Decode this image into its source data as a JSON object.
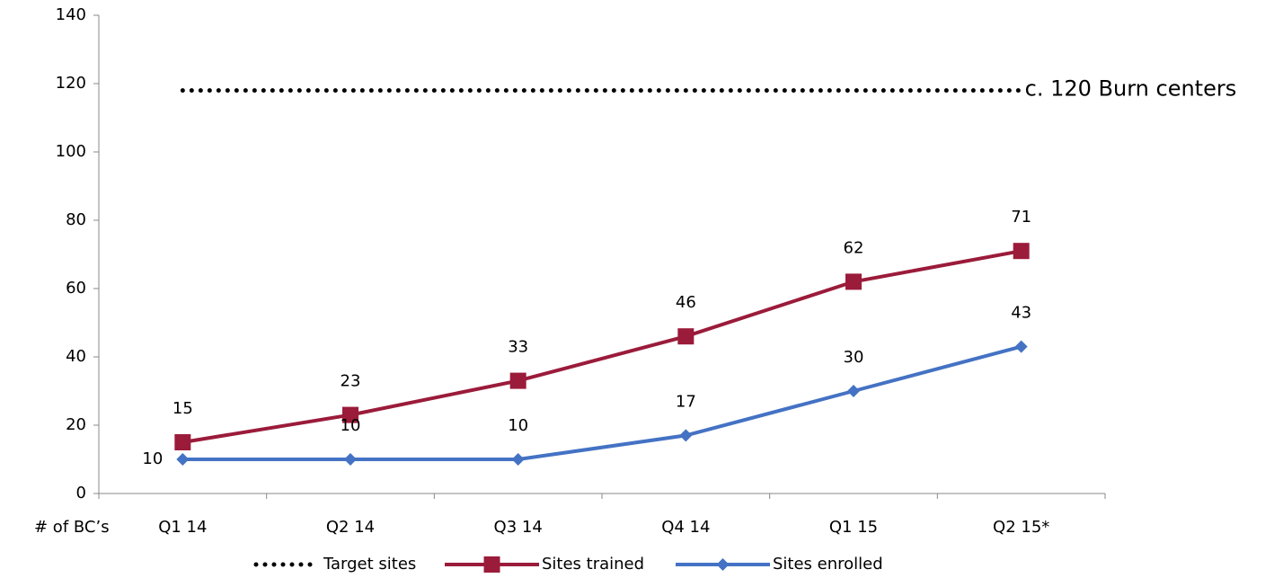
{
  "chart_data": {
    "type": "line",
    "categories": [
      "Q1 14",
      "Q2 14",
      "Q3 14",
      "Q4 14",
      "Q1 15",
      "Q2 15*"
    ],
    "series": [
      {
        "name": "Target sites",
        "color": "#000000",
        "style": "dotted",
        "values": [
          118,
          118,
          118,
          118,
          118,
          118
        ]
      },
      {
        "name": "Sites trained",
        "color": "#9b1b3a",
        "marker": "square",
        "values": [
          15,
          23,
          33,
          46,
          62,
          71
        ]
      },
      {
        "name": "Sites enrolled",
        "color": "#4472c4",
        "marker": "diamond",
        "values": [
          10,
          10,
          10,
          17,
          30,
          43
        ]
      }
    ],
    "x_label": "# of BC’s",
    "annotation": "c. 120 Burn centers",
    "ylim": [
      0,
      140
    ],
    "yticks": [
      0,
      20,
      40,
      60,
      80,
      100,
      120,
      140
    ],
    "legend": "bottom"
  }
}
